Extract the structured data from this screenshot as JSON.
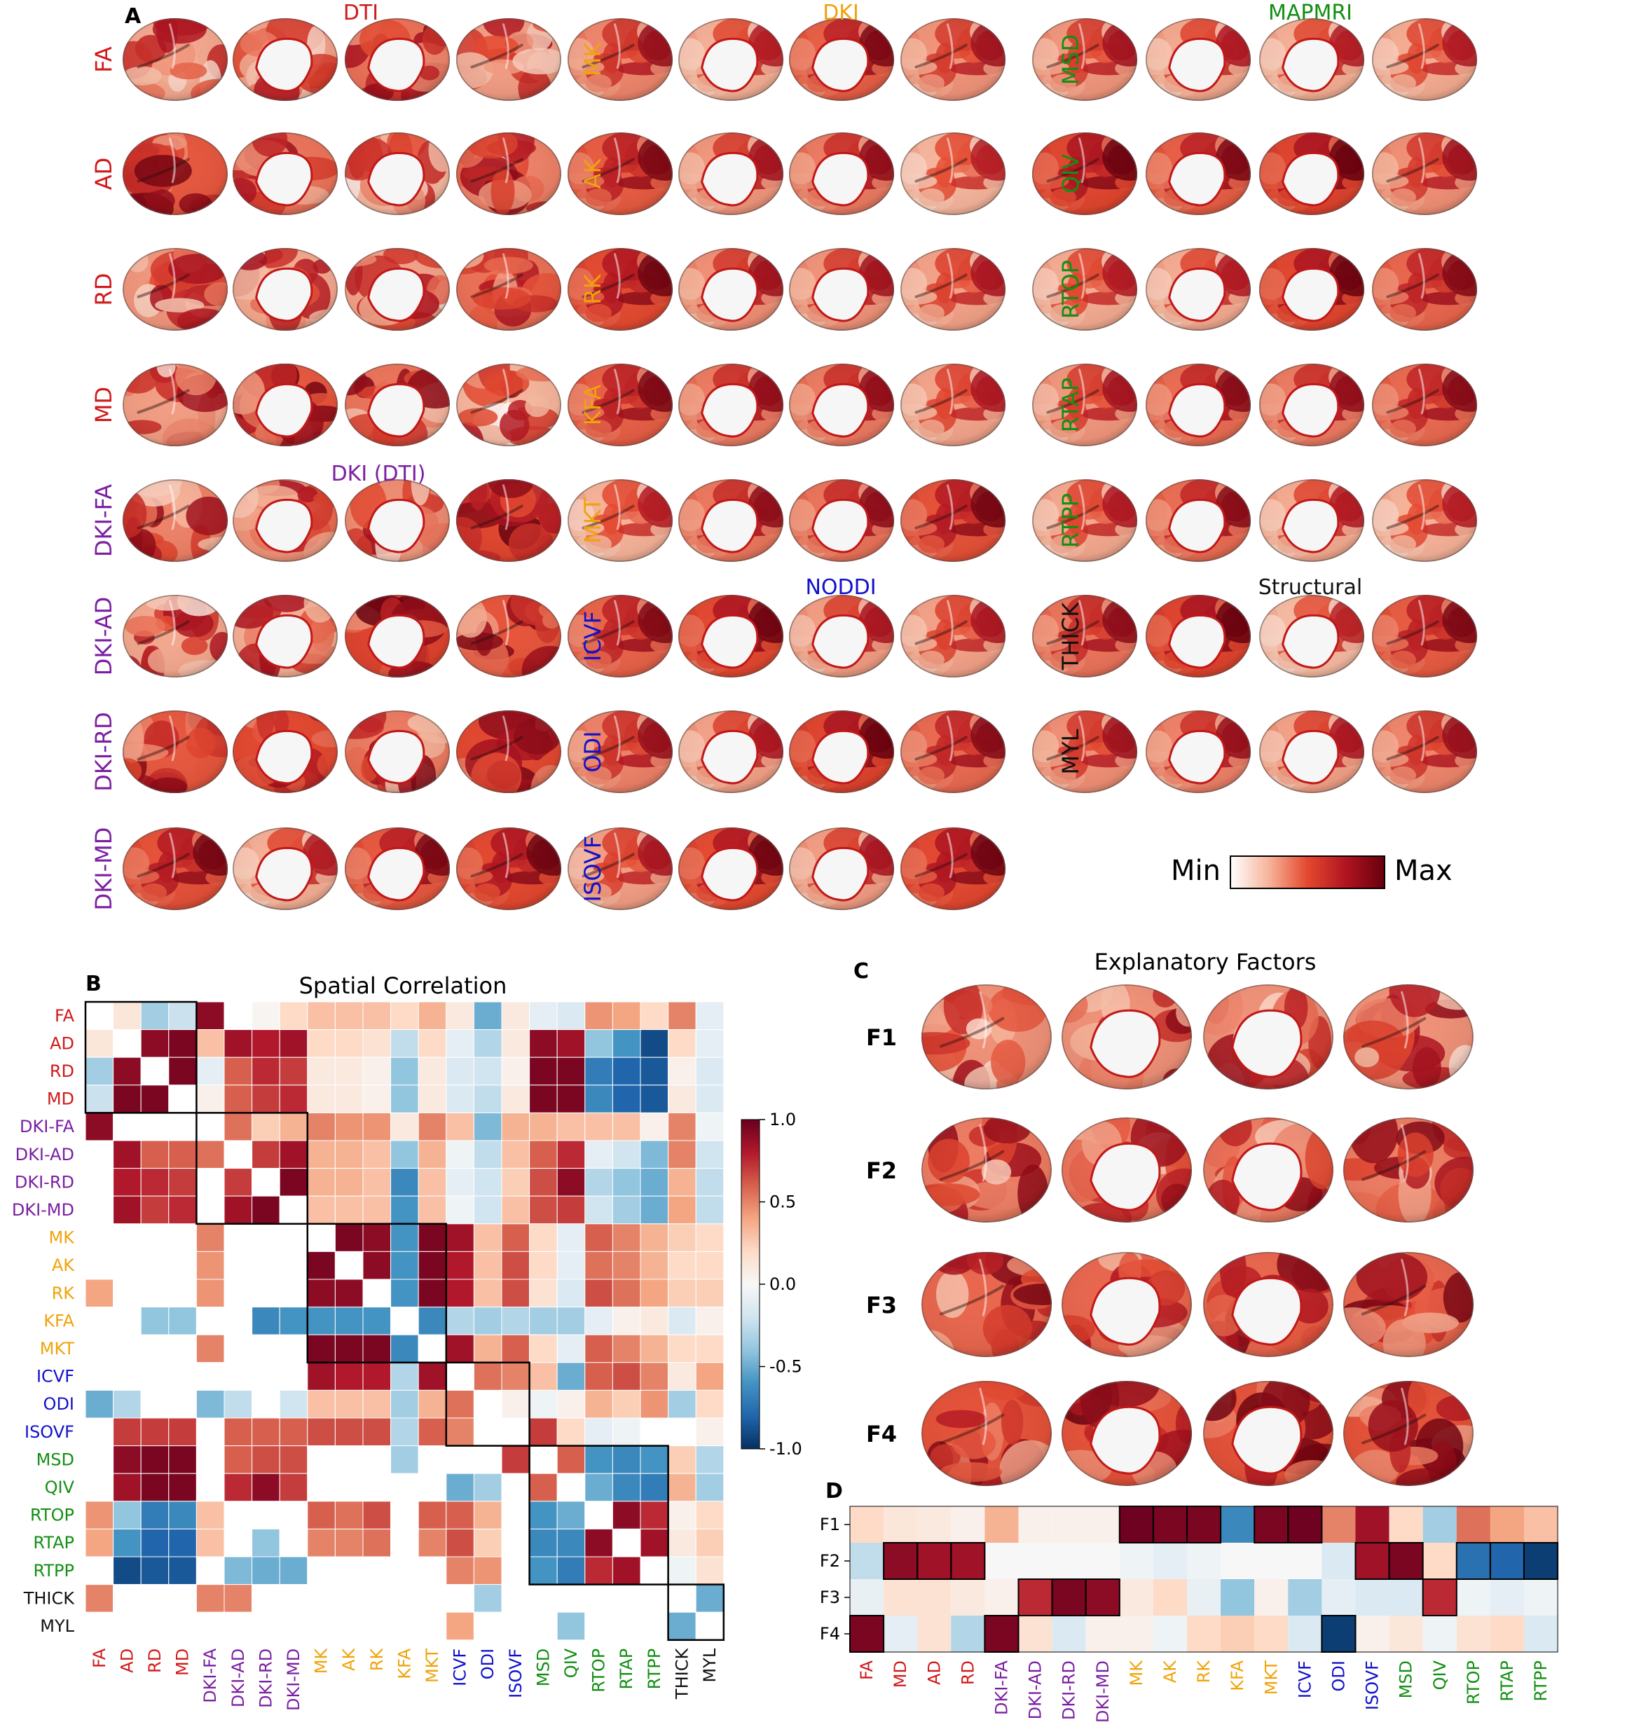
{
  "panelA": {
    "letter": "A",
    "groups": [
      {
        "title": "DTI",
        "color": "#d11a1a",
        "metrics": [
          "FA",
          "AD",
          "RD",
          "MD"
        ]
      },
      {
        "title": "DKI (DTI)",
        "color": "#7b1fa2",
        "metrics": [
          "DKI-FA",
          "DKI-AD",
          "DKI-RD",
          "DKI-MD"
        ]
      },
      {
        "title": "DKI",
        "color": "#f0a30a",
        "metrics": [
          "MK",
          "AK",
          "RK",
          "KFA",
          "MKT"
        ]
      },
      {
        "title": "NODDI",
        "color": "#1111cc",
        "metrics": [
          "ICVF",
          "ODI",
          "ISOVF"
        ]
      },
      {
        "title": "MAPMRI",
        "color": "#138f13",
        "metrics": [
          "MSD",
          "QIV",
          "RTOP",
          "RTAP",
          "RTPP"
        ]
      },
      {
        "title": "Structural",
        "color": "#111111",
        "metrics": [
          "THICK",
          "MYL"
        ]
      }
    ],
    "colorbar": {
      "min_label": "Min",
      "max_label": "Max",
      "colors": [
        "#ffffff",
        "#f6b49a",
        "#e4482f",
        "#b01420",
        "#67000d"
      ]
    }
  },
  "panelB": {
    "letter": "B",
    "title": "Spatial Correlation",
    "colorbar": {
      "ticks": [
        "1.0",
        "0.5",
        "0.0",
        "-0.5",
        "-1.0"
      ],
      "colors": [
        "#67001f",
        "#b2182b",
        "#d6604d",
        "#f4a582",
        "#fddbc7",
        "#f7f7f7",
        "#d1e5f0",
        "#92c5de",
        "#4393c3",
        "#2166ac",
        "#053061"
      ]
    }
  },
  "panelC": {
    "letter": "C",
    "title": "Explanatory Factors",
    "factors": [
      "F1",
      "F2",
      "F3",
      "F4"
    ]
  },
  "panelD": {
    "letter": "D",
    "rows": [
      "F1",
      "F2",
      "F3",
      "F4"
    ]
  },
  "chart_data": [
    {
      "type": "heatmap",
      "title": "Spatial Correlation",
      "labels": [
        "FA",
        "AD",
        "RD",
        "MD",
        "DKI-FA",
        "DKI-AD",
        "DKI-RD",
        "DKI-MD",
        "MK",
        "AK",
        "RK",
        "KFA",
        "MKT",
        "ICVF",
        "ODI",
        "ISOVF",
        "MSD",
        "QIV",
        "RTOP",
        "RTAP",
        "RTPP",
        "THICK",
        "MYL"
      ],
      "label_colors": [
        "#d11a1a",
        "#d11a1a",
        "#d11a1a",
        "#d11a1a",
        "#7b1fa2",
        "#7b1fa2",
        "#7b1fa2",
        "#7b1fa2",
        "#f0a30a",
        "#f0a30a",
        "#f0a30a",
        "#f0a30a",
        "#f0a30a",
        "#1111cc",
        "#1111cc",
        "#1111cc",
        "#138f13",
        "#138f13",
        "#138f13",
        "#138f13",
        "#138f13",
        "#111111",
        "#111111"
      ],
      "vmin": -1.0,
      "vmax": 1.0,
      "values": [
        [
          1,
          0.12,
          -0.35,
          -0.22,
          0.9,
          0,
          0.02,
          0.2,
          0.3,
          0.3,
          0.3,
          0.2,
          0.35,
          0.1,
          -0.5,
          0.1,
          -0.1,
          -0.15,
          0.45,
          0.4,
          0.2,
          0.5,
          -0.1
        ],
        [
          0.12,
          1,
          0.9,
          0.95,
          0.3,
          0.85,
          0.8,
          0.85,
          0.2,
          0.2,
          0.15,
          -0.25,
          0.2,
          -0.1,
          -0.3,
          0.1,
          0.9,
          0.85,
          -0.4,
          -0.6,
          -0.9,
          0.2,
          -0.1
        ],
        [
          -0.35,
          0.9,
          1,
          0.95,
          -0.1,
          0.6,
          0.75,
          0.7,
          0.1,
          0.1,
          0.05,
          -0.4,
          0.1,
          -0.15,
          -0.2,
          0.05,
          0.95,
          0.95,
          -0.7,
          -0.8,
          -0.85,
          0.05,
          -0.15
        ],
        [
          -0.22,
          0.95,
          0.95,
          1,
          0.05,
          0.6,
          0.7,
          0.75,
          0.1,
          0.1,
          0.05,
          -0.4,
          0.1,
          -0.15,
          -0.25,
          0.1,
          0.95,
          0.95,
          -0.65,
          -0.8,
          -0.85,
          0.1,
          -0.15
        ],
        [
          0.9,
          0,
          0,
          0,
          1,
          0.55,
          0.25,
          0.35,
          0.5,
          0.45,
          0.45,
          0.1,
          0.5,
          0.3,
          -0.45,
          0.35,
          0.35,
          0.3,
          0.3,
          0.3,
          0.05,
          0.5,
          -0.05
        ],
        [
          0,
          0.85,
          0.6,
          0.6,
          0.55,
          1,
          0.7,
          0.85,
          0.35,
          0.35,
          0.3,
          -0.4,
          0.35,
          -0.05,
          -0.25,
          0.3,
          0.6,
          0.75,
          -0.1,
          -0.2,
          -0.45,
          0.5,
          -0.2
        ],
        [
          0,
          0.8,
          0.75,
          0.7,
          0,
          0.7,
          1,
          0.95,
          0.35,
          0.35,
          0.3,
          -0.65,
          0.3,
          -0.1,
          -0.2,
          0.25,
          0.65,
          0.9,
          -0.3,
          -0.4,
          -0.5,
          0.35,
          -0.25
        ],
        [
          0,
          0.85,
          0.7,
          0.75,
          0,
          0.85,
          0.95,
          1,
          0.3,
          0.3,
          0.3,
          -0.6,
          0.3,
          -0.05,
          -0.2,
          0.3,
          0.65,
          0.7,
          -0.2,
          -0.35,
          -0.5,
          0.4,
          -0.25
        ],
        [
          0,
          0,
          0,
          0,
          0.5,
          0,
          0,
          0,
          1,
          0.95,
          0.9,
          -0.6,
          0.95,
          0.85,
          0.3,
          0.6,
          0.2,
          -0.1,
          0.6,
          0.5,
          0.35,
          0.25,
          0.2
        ],
        [
          0,
          0,
          0,
          0,
          0.45,
          0,
          0,
          0,
          0.95,
          1,
          0.9,
          -0.6,
          0.95,
          0.8,
          0.3,
          0.65,
          0.2,
          -0.1,
          0.55,
          0.5,
          0.35,
          0.2,
          0.2
        ],
        [
          0.4,
          0,
          0,
          0,
          0.45,
          0,
          0,
          0,
          0.9,
          0.9,
          1,
          -0.6,
          0.95,
          0.8,
          0.3,
          0.65,
          0.15,
          -0.15,
          0.65,
          0.55,
          0.4,
          0.25,
          0.25
        ],
        [
          0,
          0,
          -0.4,
          -0.4,
          0,
          0,
          -0.65,
          -0.6,
          -0.6,
          -0.6,
          -0.6,
          1,
          -0.65,
          -0.3,
          -0.35,
          -0.3,
          -0.35,
          -0.35,
          -0.1,
          0.05,
          0.1,
          -0.15,
          0.05
        ],
        [
          0,
          0,
          0,
          0,
          0.5,
          0,
          0,
          0,
          0.95,
          0.95,
          0.95,
          -0.65,
          1,
          0.85,
          0.35,
          0.6,
          0.2,
          -0.1,
          0.6,
          0.5,
          0.35,
          0.2,
          0.2
        ],
        [
          0,
          0,
          0,
          0,
          0,
          0,
          0,
          0,
          0.85,
          0.8,
          0.8,
          -0.3,
          0.85,
          1,
          0.55,
          0.5,
          0.3,
          -0.5,
          0.6,
          0.65,
          0.5,
          0.1,
          0.4
        ],
        [
          -0.5,
          -0.3,
          0,
          0,
          -0.45,
          -0.25,
          0,
          -0.2,
          0.3,
          0.3,
          0.3,
          -0.35,
          0.35,
          0.55,
          1,
          0.05,
          -0.05,
          0.05,
          0.35,
          0.25,
          0.45,
          -0.35,
          0.2
        ],
        [
          0,
          0.7,
          0.7,
          0.7,
          0,
          0.6,
          0.6,
          0.6,
          0.65,
          0.65,
          0.65,
          -0.3,
          0.6,
          0.5,
          0,
          1,
          0.7,
          0.2,
          -0.1,
          -0.05,
          0,
          0,
          0.05
        ],
        [
          0,
          0.9,
          0.95,
          0.95,
          0,
          0.6,
          0.65,
          0.65,
          0,
          0,
          0,
          -0.35,
          0,
          0,
          0,
          0.7,
          1,
          0.6,
          -0.6,
          -0.65,
          -0.6,
          0.25,
          -0.3
        ],
        [
          0,
          0.85,
          0.95,
          0.95,
          0,
          0.75,
          0.9,
          0.7,
          0,
          0,
          0,
          0,
          0,
          -0.5,
          -0.35,
          0,
          0.6,
          1,
          -0.5,
          -0.65,
          -0.7,
          0.35,
          -0.35
        ],
        [
          0.45,
          -0.4,
          -0.7,
          -0.65,
          0.3,
          0,
          0,
          0,
          0.6,
          0.55,
          0.65,
          0,
          0.6,
          0.6,
          0.35,
          0,
          -0.6,
          -0.5,
          1,
          0.9,
          0.75,
          0.05,
          0.2
        ],
        [
          0.4,
          -0.6,
          -0.8,
          -0.8,
          0.3,
          0,
          -0.4,
          0,
          0.5,
          0.5,
          0.55,
          0,
          0.5,
          0.65,
          0.25,
          0,
          -0.65,
          -0.65,
          0.9,
          1,
          0.85,
          0.1,
          0.25
        ],
        [
          0,
          -0.9,
          -0.85,
          -0.85,
          0,
          -0.45,
          -0.5,
          -0.5,
          0,
          0,
          0,
          0,
          0,
          0.5,
          0.45,
          0,
          -0.6,
          -0.7,
          0.75,
          0.85,
          1,
          -0.05,
          0.15
        ],
        [
          0.5,
          0,
          0,
          0,
          0.5,
          0.5,
          0,
          0,
          0,
          0,
          0,
          0,
          0,
          0,
          -0.35,
          0,
          0,
          0,
          0,
          0,
          0,
          1,
          -0.5
        ],
        [
          0,
          0,
          0,
          0,
          0,
          0,
          0,
          0,
          0,
          0,
          0,
          0,
          0,
          0.4,
          0,
          0,
          0,
          -0.4,
          0,
          0,
          0,
          -0.5,
          1
        ]
      ],
      "blocks": [
        [
          0,
          3
        ],
        [
          4,
          7
        ],
        [
          8,
          12
        ],
        [
          13,
          15
        ],
        [
          16,
          20
        ],
        [
          21,
          22
        ]
      ],
      "colorbar_ticks": [
        1.0,
        0.5,
        0.0,
        -0.5,
        -1.0
      ]
    },
    {
      "type": "heatmap",
      "rows": [
        "F1",
        "F2",
        "F3",
        "F4"
      ],
      "columns": [
        "FA",
        "MD",
        "AD",
        "RD",
        "DKI-FA",
        "DKI-AD",
        "DKI-RD",
        "DKI-MD",
        "MK",
        "AK",
        "RK",
        "KFA",
        "MKT",
        "ICVF",
        "ODI",
        "ISOVF",
        "MSD",
        "QIV",
        "RTOP",
        "RTAP",
        "RTPP"
      ],
      "column_colors": [
        "#d11a1a",
        "#d11a1a",
        "#d11a1a",
        "#d11a1a",
        "#7b1fa2",
        "#7b1fa2",
        "#7b1fa2",
        "#7b1fa2",
        "#f0a30a",
        "#f0a30a",
        "#f0a30a",
        "#f0a30a",
        "#f0a30a",
        "#1111cc",
        "#1111cc",
        "#1111cc",
        "#138f13",
        "#138f13",
        "#138f13",
        "#138f13",
        "#138f13"
      ],
      "vmin": -1.0,
      "vmax": 1.0,
      "values": [
        [
          0.2,
          0.12,
          0.1,
          0.05,
          0.35,
          0.05,
          0.05,
          0.05,
          0.98,
          0.95,
          0.95,
          -0.65,
          0.95,
          0.98,
          0.5,
          0.85,
          0.2,
          -0.35,
          0.55,
          0.4,
          0.3
        ],
        [
          -0.25,
          0.9,
          0.85,
          0.85,
          0,
          0,
          0,
          0,
          -0.05,
          -0.1,
          -0.05,
          0,
          0,
          0,
          -0.15,
          0.85,
          0.95,
          0.2,
          -0.75,
          -0.8,
          -0.95
        ],
        [
          -0.08,
          0.15,
          0.15,
          0.1,
          0.05,
          0.75,
          0.95,
          0.9,
          0.1,
          0.2,
          -0.08,
          -0.4,
          0.05,
          -0.35,
          -0.1,
          -0.15,
          -0.15,
          0.75,
          -0.05,
          -0.1,
          -0.05
        ],
        [
          0.95,
          -0.1,
          0.15,
          -0.3,
          0.95,
          0.15,
          -0.15,
          0.05,
          0.05,
          -0.05,
          0.2,
          0.25,
          0.2,
          -0.15,
          -0.95,
          0.05,
          0.12,
          -0.05,
          0.15,
          0.2,
          -0.15
        ]
      ],
      "highlighted": [
        [
          0,
          8
        ],
        [
          0,
          9
        ],
        [
          0,
          10
        ],
        [
          0,
          12
        ],
        [
          0,
          13
        ],
        [
          1,
          1
        ],
        [
          1,
          2
        ],
        [
          1,
          3
        ],
        [
          1,
          15
        ],
        [
          1,
          16
        ],
        [
          1,
          18
        ],
        [
          1,
          19
        ],
        [
          1,
          20
        ],
        [
          2,
          5
        ],
        [
          2,
          6
        ],
        [
          2,
          7
        ],
        [
          2,
          17
        ],
        [
          3,
          0
        ],
        [
          3,
          4
        ],
        [
          3,
          14
        ]
      ]
    }
  ]
}
